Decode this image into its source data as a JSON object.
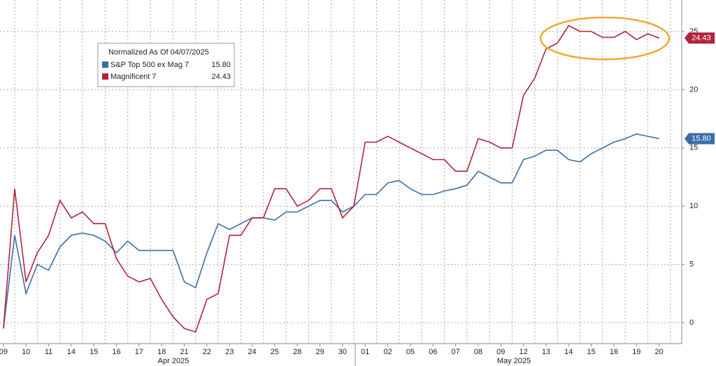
{
  "chart_data": {
    "type": "line",
    "legend_title": "Normalized As Of 04/07/2025",
    "x": [
      0,
      0.5,
      1,
      1.5,
      2,
      2.5,
      3,
      3.5,
      4,
      4.5,
      5,
      5.5,
      6,
      6.5,
      7,
      7.5,
      8,
      8.5,
      9,
      9.5,
      10,
      10.5,
      11,
      11.5,
      12,
      12.5,
      13,
      13.5,
      14,
      14.5,
      15,
      15.5,
      16,
      16.5,
      17,
      17.5,
      18,
      18.5,
      19,
      19.5,
      20,
      20.5,
      21,
      21.5,
      22,
      22.5,
      23,
      23.5,
      24,
      24.5,
      25,
      25.5,
      26,
      26.5,
      27,
      27.5,
      28,
      28.5,
      29
    ],
    "series": [
      {
        "name": "S&P Top 500 ex Mag 7",
        "color": "#3a6ea5",
        "values": [
          -0.5,
          7.5,
          2.5,
          5,
          4.5,
          6.5,
          7.5,
          7.7,
          7.5,
          7,
          6,
          7,
          6.2,
          6.2,
          6.2,
          6.2,
          3.5,
          3,
          6,
          8.5,
          8,
          8.5,
          9,
          9,
          8.8,
          9.5,
          9.5,
          10,
          10.5,
          10.5,
          9.5,
          10,
          11,
          11,
          12,
          12.2,
          11.5,
          11,
          11,
          11.3,
          11.5,
          11.8,
          13,
          12.5,
          12,
          12,
          14,
          14.3,
          14.8,
          14.8,
          14,
          13.8,
          14.5,
          15,
          15.5,
          15.8,
          16.2,
          16,
          15.8
        ],
        "value_labels": [
          null,
          null,
          null,
          null,
          null,
          null,
          null,
          null,
          null,
          null,
          null,
          null,
          null,
          null,
          null,
          null,
          null,
          null,
          null,
          null,
          null,
          null,
          null,
          null,
          null,
          null,
          null,
          null,
          null,
          null,
          null,
          null,
          null,
          null,
          null,
          null,
          null,
          null,
          null,
          null,
          null,
          null,
          null,
          null,
          null,
          null,
          null,
          null,
          null,
          null,
          null,
          null,
          null,
          null,
          null,
          null,
          null,
          null,
          "15.80"
        ]
      },
      {
        "name": "Magnificent 7",
        "color": "#b0243a",
        "values": [
          -0.5,
          11.5,
          3.5,
          6,
          7.5,
          10.5,
          9,
          9.5,
          8.5,
          8.5,
          5.5,
          4,
          3.5,
          3.8,
          2,
          0.5,
          -0.5,
          -0.8,
          2,
          2.5,
          7.5,
          7.5,
          9,
          9,
          11.5,
          11.5,
          10,
          10.5,
          11.5,
          11.5,
          9,
          10,
          15.5,
          15.5,
          16,
          15.5,
          15,
          14.5,
          14,
          14,
          13,
          13,
          15.8,
          15.5,
          15,
          15,
          19.5,
          21,
          23.5,
          24,
          25.5,
          25,
          25,
          24.5,
          24.5,
          25,
          24.3,
          24.8,
          24.43
        ],
        "value_labels": [
          null,
          null,
          null,
          null,
          null,
          null,
          null,
          null,
          null,
          null,
          null,
          null,
          null,
          null,
          null,
          null,
          null,
          null,
          null,
          null,
          null,
          null,
          null,
          null,
          null,
          null,
          null,
          null,
          null,
          null,
          null,
          null,
          null,
          null,
          null,
          null,
          null,
          null,
          null,
          null,
          null,
          null,
          null,
          null,
          null,
          null,
          null,
          null,
          null,
          null,
          null,
          null,
          null,
          null,
          null,
          null,
          null,
          null,
          "24.43"
        ]
      }
    ],
    "xlim": [
      -0.15,
      30
    ],
    "xticks": [
      {
        "value": 0,
        "label": "09"
      },
      {
        "value": 1,
        "label": "10"
      },
      {
        "value": 2,
        "label": "11"
      },
      {
        "value": 3,
        "label": "14"
      },
      {
        "value": 4,
        "label": "15"
      },
      {
        "value": 5,
        "label": "16"
      },
      {
        "value": 6,
        "label": "17"
      },
      {
        "value": 7,
        "label": "18"
      },
      {
        "value": 8,
        "label": "21"
      },
      {
        "value": 9,
        "label": "22"
      },
      {
        "value": 10,
        "label": "23"
      },
      {
        "value": 11,
        "label": "24"
      },
      {
        "value": 12,
        "label": "25"
      },
      {
        "value": 13,
        "label": "28"
      },
      {
        "value": 14,
        "label": "29"
      },
      {
        "value": 15,
        "label": "30"
      },
      {
        "value": 16,
        "label": "01"
      },
      {
        "value": 17,
        "label": "02"
      },
      {
        "value": 18,
        "label": "05"
      },
      {
        "value": 19,
        "label": "06"
      },
      {
        "value": 20,
        "label": "07"
      },
      {
        "value": 21,
        "label": "08"
      },
      {
        "value": 22,
        "label": "09"
      },
      {
        "value": 23,
        "label": "12"
      },
      {
        "value": 24,
        "label": "13"
      },
      {
        "value": 25,
        "label": "14"
      },
      {
        "value": 26,
        "label": "15"
      },
      {
        "value": 27,
        "label": "16"
      },
      {
        "value": 28,
        "label": "19"
      },
      {
        "value": 29,
        "label": "20"
      }
    ],
    "x_group_labels": [
      "Apr 2025",
      "May 2025"
    ],
    "ylim": [
      -1.8,
      27.7
    ],
    "yticks": [
      0,
      5,
      10,
      15,
      20,
      25
    ],
    "grid": true
  }
}
